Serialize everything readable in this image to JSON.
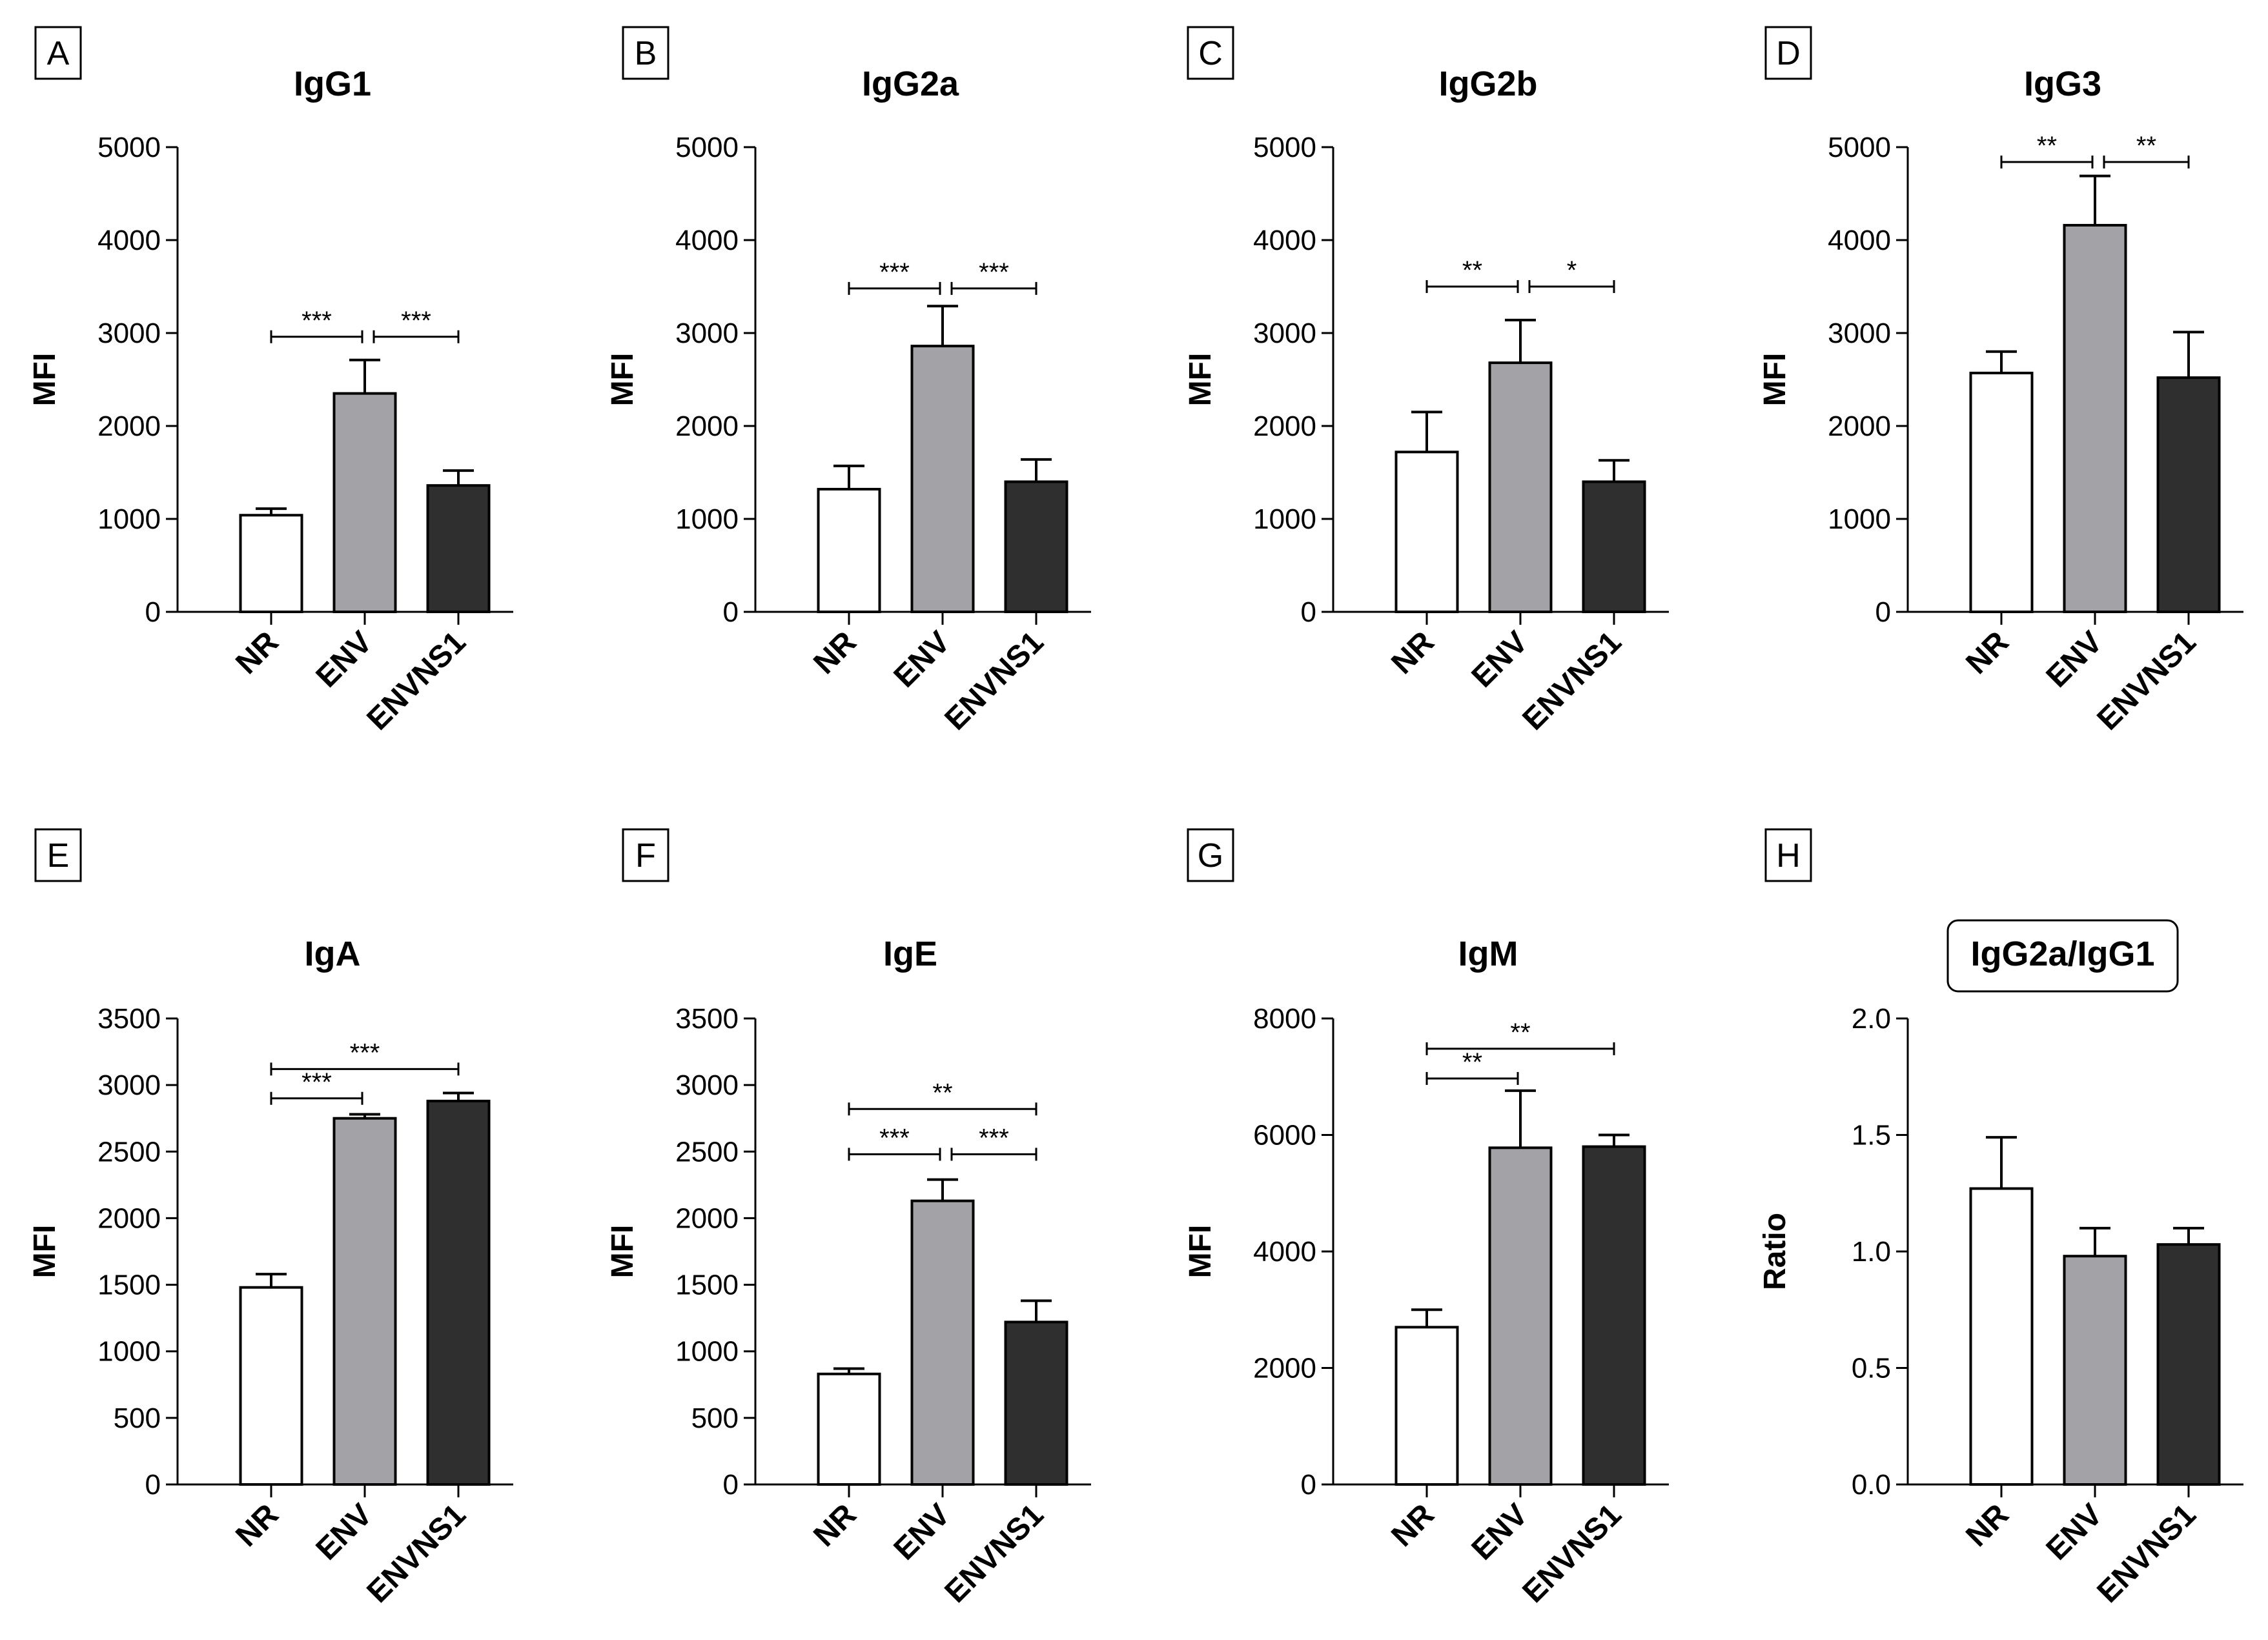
{
  "colors": {
    "NR": "#ffffff",
    "ENV": "#a3a3a7",
    "ENVNS1": "#2f2f2f",
    "stroke": "#000000"
  },
  "chart_data": [
    {
      "panel": "A",
      "type": "bar",
      "title": "IgG1",
      "xlabel": "",
      "ylabel": "MFI",
      "ylim": [
        0,
        5000
      ],
      "yticks": [
        0,
        1000,
        2000,
        3000,
        4000,
        5000
      ],
      "ytick_labels": [
        "0",
        "1000",
        "2000",
        "3000",
        "4000",
        "5000"
      ],
      "categories": [
        "NR",
        "ENV",
        "ENVNS1"
      ],
      "values": [
        1040,
        2350,
        1360
      ],
      "errors": [
        70,
        360,
        160
      ],
      "significance": [
        {
          "from": 0,
          "to": 1,
          "label": "***",
          "y": 2960
        },
        {
          "from": 1,
          "to": 2,
          "label": "***",
          "y": 2960
        }
      ]
    },
    {
      "panel": "B",
      "type": "bar",
      "title": "IgG2a",
      "xlabel": "",
      "ylabel": "MFI",
      "ylim": [
        0,
        5000
      ],
      "yticks": [
        0,
        1000,
        2000,
        3000,
        4000,
        5000
      ],
      "ytick_labels": [
        "0",
        "1000",
        "2000",
        "3000",
        "4000",
        "5000"
      ],
      "categories": [
        "NR",
        "ENV",
        "ENVNS1"
      ],
      "values": [
        1320,
        2860,
        1400
      ],
      "errors": [
        250,
        430,
        240
      ],
      "significance": [
        {
          "from": 0,
          "to": 1,
          "label": "***",
          "y": 3480
        },
        {
          "from": 1,
          "to": 2,
          "label": "***",
          "y": 3480
        }
      ]
    },
    {
      "panel": "C",
      "type": "bar",
      "title": "IgG2b",
      "xlabel": "",
      "ylabel": "MFI",
      "ylim": [
        0,
        5000
      ],
      "yticks": [
        0,
        1000,
        2000,
        3000,
        4000,
        5000
      ],
      "ytick_labels": [
        "0",
        "1000",
        "2000",
        "3000",
        "4000",
        "5000"
      ],
      "categories": [
        "NR",
        "ENV",
        "ENVNS1"
      ],
      "values": [
        1720,
        2680,
        1400
      ],
      "errors": [
        430,
        460,
        230
      ],
      "significance": [
        {
          "from": 0,
          "to": 1,
          "label": "**",
          "y": 3500
        },
        {
          "from": 1,
          "to": 2,
          "label": "*",
          "y": 3500
        }
      ]
    },
    {
      "panel": "D",
      "type": "bar",
      "title": "IgG3",
      "xlabel": "",
      "ylabel": "MFI",
      "ylim": [
        0,
        5000
      ],
      "yticks": [
        0,
        1000,
        2000,
        3000,
        4000,
        5000
      ],
      "ytick_labels": [
        "0",
        "1000",
        "2000",
        "3000",
        "4000",
        "5000"
      ],
      "categories": [
        "NR",
        "ENV",
        "ENVNS1"
      ],
      "values": [
        2570,
        4160,
        2520
      ],
      "errors": [
        230,
        530,
        490
      ],
      "significance": [
        {
          "from": 0,
          "to": 1,
          "label": "**",
          "y": 4840
        },
        {
          "from": 1,
          "to": 2,
          "label": "**",
          "y": 4840
        }
      ]
    },
    {
      "panel": "E",
      "type": "bar",
      "title": "IgA",
      "xlabel": "",
      "ylabel": "MFI",
      "ylim": [
        0,
        3500
      ],
      "yticks": [
        0,
        500,
        1000,
        1500,
        2000,
        2500,
        3000,
        3500
      ],
      "ytick_labels": [
        "0",
        "500",
        "1000",
        "1500",
        "2000",
        "2500",
        "3000",
        "3500"
      ],
      "categories": [
        "NR",
        "ENV",
        "ENVNS1"
      ],
      "values": [
        1480,
        2750,
        2880
      ],
      "errors": [
        100,
        30,
        60
      ],
      "significance": [
        {
          "from": 0,
          "to": 1,
          "label": "***",
          "y": 2900
        },
        {
          "from": 0,
          "to": 2,
          "label": "***",
          "y": 3120
        }
      ]
    },
    {
      "panel": "F",
      "type": "bar",
      "title": "IgE",
      "xlabel": "",
      "ylabel": "MFI",
      "ylim": [
        0,
        3500
      ],
      "yticks": [
        0,
        500,
        1000,
        1500,
        2000,
        2500,
        3000,
        3500
      ],
      "ytick_labels": [
        "0",
        "500",
        "1000",
        "1500",
        "2000",
        "2500",
        "3000",
        "3500"
      ],
      "categories": [
        "NR",
        "ENV",
        "ENVNS1"
      ],
      "values": [
        830,
        2130,
        1220
      ],
      "errors": [
        40,
        160,
        160
      ],
      "significance": [
        {
          "from": 0,
          "to": 1,
          "label": "***",
          "y": 2480
        },
        {
          "from": 1,
          "to": 2,
          "label": "***",
          "y": 2480
        },
        {
          "from": 0,
          "to": 2,
          "label": "**",
          "y": 2820
        }
      ]
    },
    {
      "panel": "G",
      "type": "bar",
      "title": "IgM",
      "xlabel": "",
      "ylabel": "MFI",
      "ylim": [
        0,
        8000
      ],
      "yticks": [
        0,
        2000,
        4000,
        6000,
        8000
      ],
      "ytick_labels": [
        "0",
        "2000",
        "4000",
        "6000",
        "8000"
      ],
      "categories": [
        "NR",
        "ENV",
        "ENVNS1"
      ],
      "values": [
        2700,
        5780,
        5800
      ],
      "errors": [
        300,
        980,
        200
      ],
      "significance": [
        {
          "from": 0,
          "to": 1,
          "label": "**",
          "y": 6970
        },
        {
          "from": 0,
          "to": 2,
          "label": "**",
          "y": 7480
        }
      ]
    },
    {
      "panel": "H",
      "type": "bar",
      "title": "IgG2a/IgG1",
      "title_boxed": true,
      "xlabel": "",
      "ylabel": "Ratio",
      "ylim": [
        0,
        2.0
      ],
      "yticks": [
        0,
        0.5,
        1.0,
        1.5,
        2.0
      ],
      "ytick_labels": [
        "0.0",
        "0.5",
        "1.0",
        "1.5",
        "2.0"
      ],
      "categories": [
        "NR",
        "ENV",
        "ENVNS1"
      ],
      "values": [
        1.27,
        0.98,
        1.03
      ],
      "errors": [
        0.22,
        0.12,
        0.07
      ],
      "significance": []
    }
  ]
}
